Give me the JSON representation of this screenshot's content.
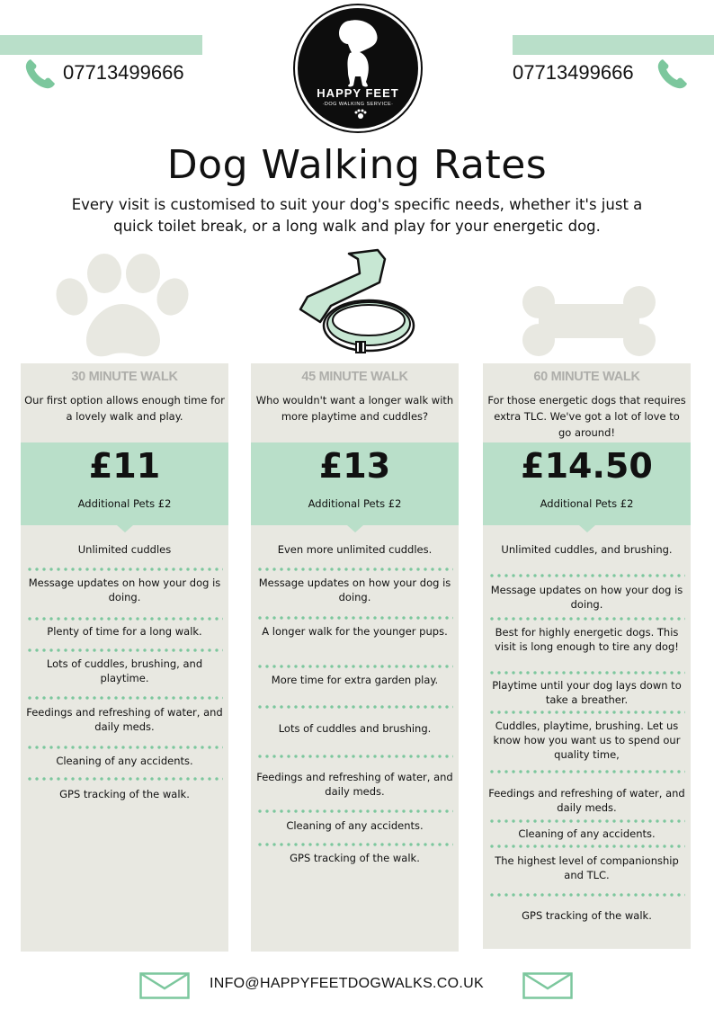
{
  "header": {
    "phone_left": "07713499666",
    "phone_right": "07713499666",
    "logo": {
      "title": "HAPPY FEET",
      "subtitle": "·DOG WALKING SERVICE·"
    }
  },
  "title": "Dog Walking Rates",
  "subtitle": "Every visit is customised to suit your dog's specific needs, whether it's just a quick toilet break, or a long walk and play for your energetic dog.",
  "colors": {
    "accent_green": "#b9dfc9",
    "dot_green": "#7cc79d",
    "column_bg": "#e8e8e1",
    "title_grey": "#aeaeaa"
  },
  "icons": [
    "phone-icon",
    "paw-icon",
    "leash-icon",
    "bone-icon",
    "envelope-icon"
  ],
  "columns": [
    {
      "title": "30 MINUTE WALK",
      "description": "Our first option allows enough time for a lovely walk and play.",
      "price": "£11",
      "additional": "Additional Pets £2",
      "features": [
        "Unlimited cuddles",
        "Message updates on how your dog is doing.",
        "Plenty of time for a long walk.",
        "Lots of cuddles, brushing, and playtime.",
        "Feedings and refreshing of water, and daily meds.",
        "Cleaning of any accidents.",
        "GPS tracking of the walk."
      ]
    },
    {
      "title": "45 MINUTE WALK",
      "description": "Who wouldn't want a longer walk with more playtime and cuddles?",
      "price": "£13",
      "additional": "Additional Pets £2",
      "features": [
        "Even more unlimited cuddles.",
        "Message updates on how your dog is doing.",
        "A longer walk for the younger pups.",
        "More time for extra garden play.",
        "Lots of cuddles and brushing.",
        "Feedings and refreshing of water, and daily meds.",
        "Cleaning of any accidents.",
        "GPS tracking of the walk."
      ]
    },
    {
      "title": "60 MINUTE WALK",
      "description": "For those energetic dogs that requires extra TLC. We've got a lot of love to go around!",
      "price": "£14.50",
      "additional": "Additional Pets £2",
      "features": [
        "Unlimited cuddles, and brushing.",
        "Message updates on how your dog is doing.",
        "Best for highly energetic dogs. This visit is long enough to tire any dog!",
        "Playtime until your dog lays down to take a breather.",
        "Cuddles, playtime, brushing. Let us know how you want us to spend our quality time,",
        "Feedings and refreshing of water, and daily meds.",
        "Cleaning of any accidents.",
        "The highest level of companionship and TLC.",
        "GPS tracking of the walk."
      ]
    }
  ],
  "footer": {
    "email": "INFO@HAPPYFEETDOGWALKS.CO.UK"
  }
}
